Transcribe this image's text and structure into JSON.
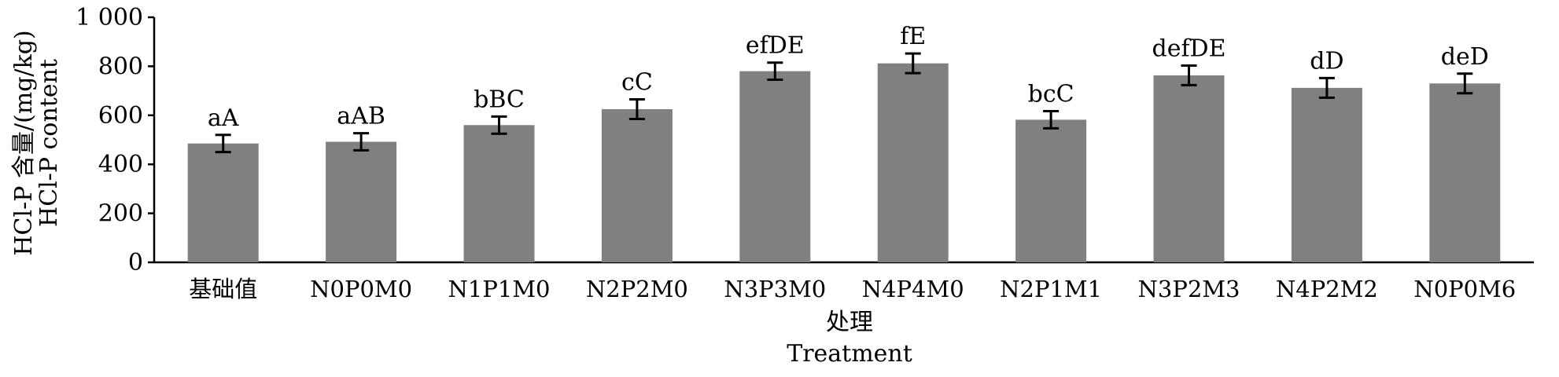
{
  "chart_data": {
    "type": "bar",
    "categories": [
      "基础值",
      "N0P0M0",
      "N1P1M0",
      "N2P2M0",
      "N3P3M0",
      "N4P4M0",
      "N2P1M1",
      "N3P2M3",
      "N4P2M2",
      "N0P0M6"
    ],
    "values": [
      485,
      492,
      560,
      625,
      780,
      812,
      582,
      763,
      712,
      730
    ],
    "errors": [
      35,
      35,
      35,
      40,
      35,
      40,
      35,
      40,
      40,
      40
    ],
    "significance": [
      "aA",
      "aAB",
      "bBC",
      "cC",
      "efDE",
      "fE",
      "bcC",
      "defDE",
      "dD",
      "deD"
    ],
    "ylim": [
      0,
      1000
    ],
    "yticks": [
      0,
      200,
      400,
      600,
      800,
      1000
    ],
    "ytick_labels": [
      "0",
      "200",
      "400",
      "600",
      "800",
      "1 000"
    ],
    "xlabel_cn": "处理",
    "xlabel_en": "Treatment",
    "ylabel_cn": "HCl-P 含量/(mg/kg)",
    "ylabel_en": "HCl-P content",
    "grid": false,
    "bar_color": "#808080"
  }
}
